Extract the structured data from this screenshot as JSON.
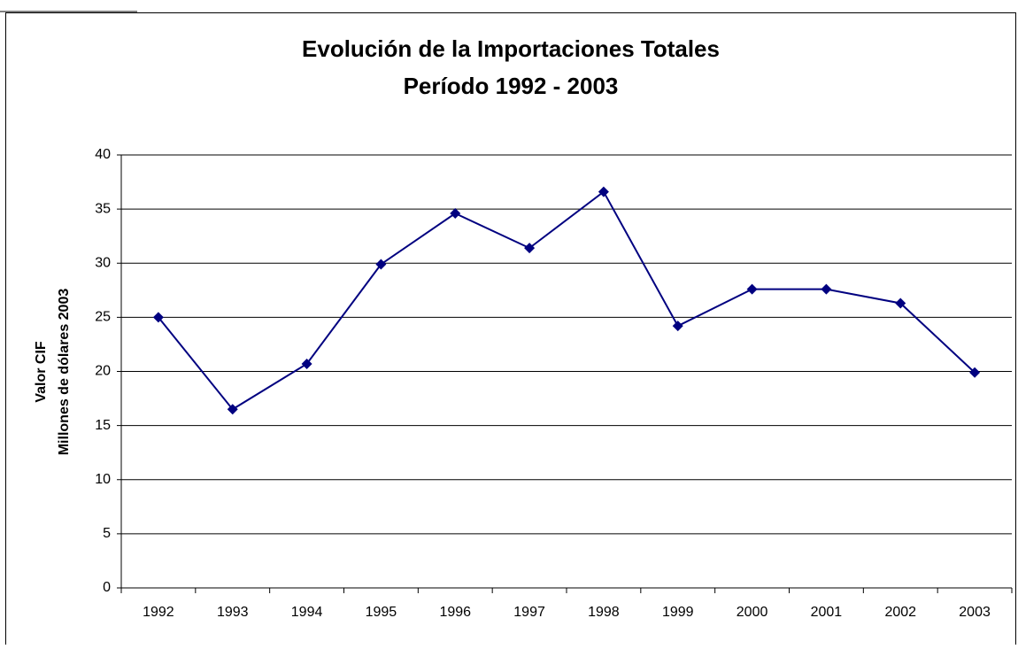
{
  "chart_data": {
    "type": "line",
    "title": [
      "Evolución de la Importaciones Totales",
      "Período 1992 - 2003"
    ],
    "y_label": [
      "Valor CIF",
      "Millones de dólares 2003"
    ],
    "categories": [
      "1992",
      "1993",
      "1994",
      "1995",
      "1996",
      "1997",
      "1998",
      "1999",
      "2000",
      "2001",
      "2002",
      "2003"
    ],
    "series": [
      {
        "name": "Importaciones",
        "color": "#000080",
        "values": [
          25.0,
          16.5,
          20.7,
          29.9,
          34.6,
          31.4,
          36.6,
          24.2,
          27.6,
          27.6,
          26.3,
          19.9
        ]
      }
    ],
    "ylim": [
      0,
      40
    ],
    "yticks": [
      0,
      5,
      10,
      15,
      20,
      25,
      30,
      35,
      40
    ],
    "grid": true,
    "legend": false
  }
}
